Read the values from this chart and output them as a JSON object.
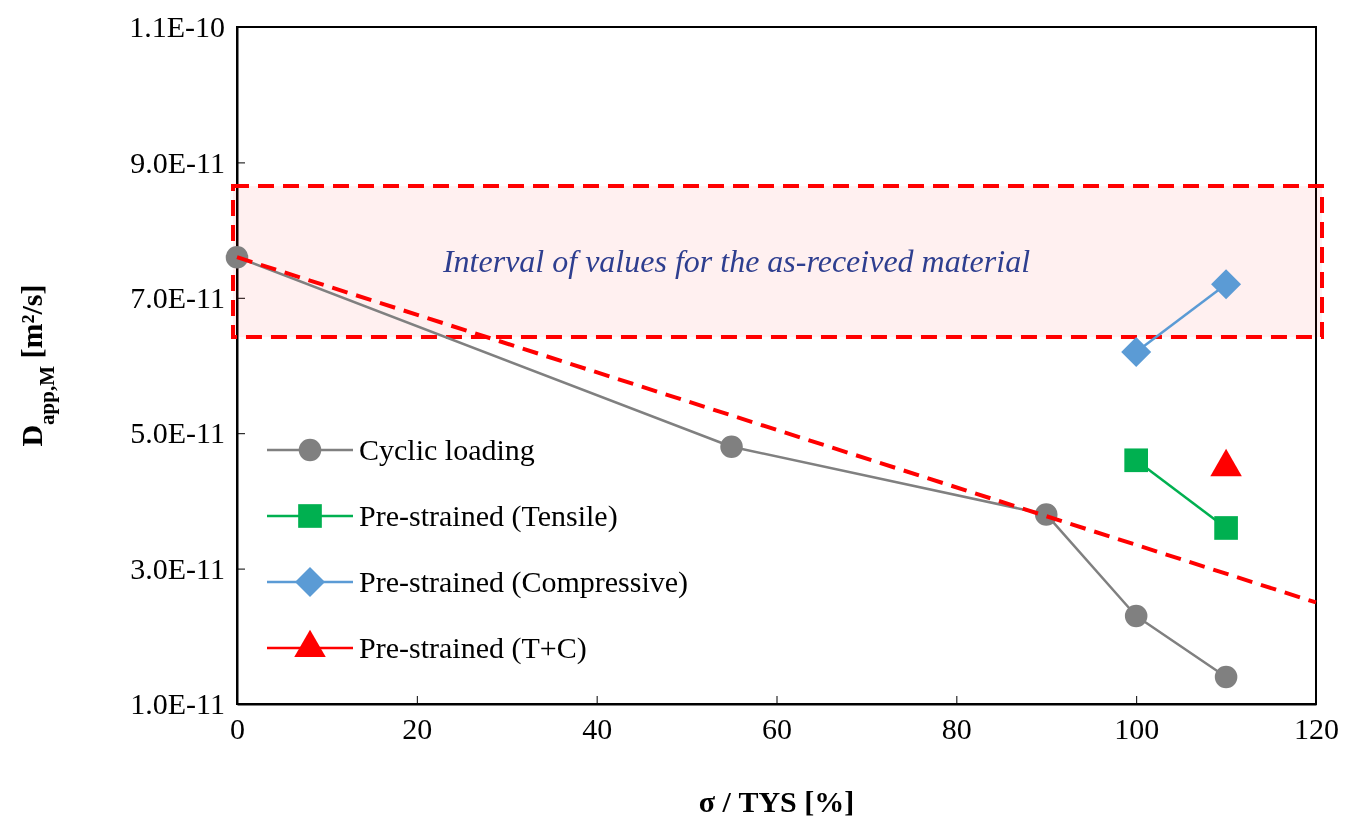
{
  "chart_data": {
    "type": "line",
    "xlabel": "σ / TYS [%]",
    "ylabel": "D$_{app,M}$ [m²/s]",
    "xlim": [
      0,
      120
    ],
    "xticks": [
      0,
      20,
      40,
      60,
      80,
      100,
      120
    ],
    "ylim": [
      1e-11,
      1.1e-10
    ],
    "yticks": [
      {
        "value": 1e-11,
        "label": "1.0E-11"
      },
      {
        "value": 3e-11,
        "label": "3.0E-11"
      },
      {
        "value": 5e-11,
        "label": "5.0E-11"
      },
      {
        "value": 7e-11,
        "label": "7.0E-11"
      },
      {
        "value": 9e-11,
        "label": "9.0E-11"
      },
      {
        "value": 1.1e-10,
        "label": "1.1E-10"
      }
    ],
    "grid": false,
    "legend": "bottom left",
    "series": [
      {
        "name": "Cyclic loading",
        "color": "#808080",
        "marker": "circle",
        "x": [
          0,
          55,
          90,
          100,
          110
        ],
        "values": [
          7.6e-11,
          4.8e-11,
          3.8e-11,
          2.3e-11,
          1.4e-11
        ]
      },
      {
        "name": "Pre-strained (Tensile)",
        "color": "#00b050",
        "marker": "square",
        "x": [
          100,
          110
        ],
        "values": [
          4.6e-11,
          3.6e-11
        ]
      },
      {
        "name": "Pre-strained (Compressive)",
        "color": "#5b9bd5",
        "marker": "diamond",
        "x": [
          100,
          110
        ],
        "values": [
          6.2e-11,
          7.2e-11
        ]
      },
      {
        "name": "Pre-strained (T+C)",
        "color": "#ff0000",
        "marker": "triangle",
        "x": [
          110
        ],
        "values": [
          4.5e-11
        ]
      },
      {
        "type": "line",
        "color": "#ff0000",
        "marker": "none",
        "line_style": "dashed",
        "x": [
          0,
          120
        ],
        "values": [
          7.6e-11,
          2.5e-11
        ]
      }
    ],
    "bands": [
      {
        "axis": "y",
        "from": 6.42e-11,
        "to": 8.65e-11,
        "label": "Interval of values for the as-received material",
        "color": "#ff0000"
      }
    ]
  }
}
